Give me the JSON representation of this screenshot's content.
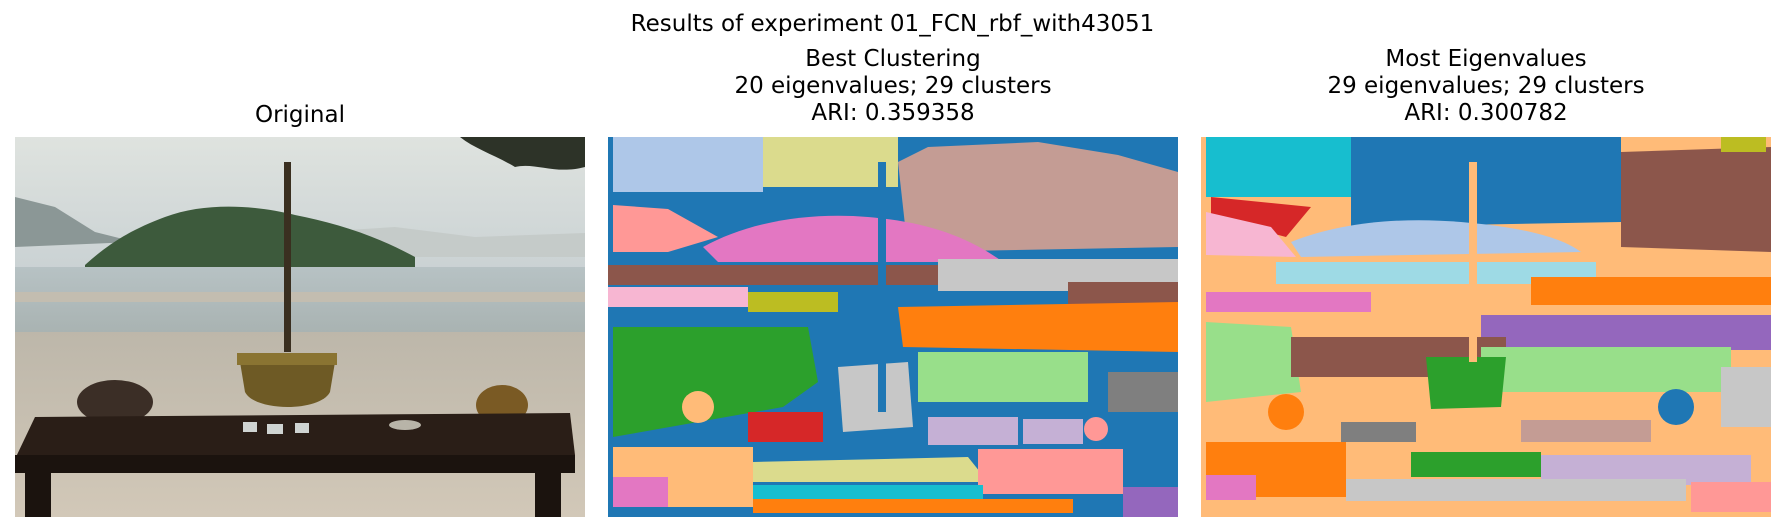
{
  "figure": {
    "title": "Results of experiment 01_FCN_rbf_with43051"
  },
  "panels": [
    {
      "name": "original",
      "title_lines": [
        "Original"
      ],
      "kind": "photo"
    },
    {
      "name": "best-clustering",
      "title_lines": [
        "Best Clustering",
        "20 eigenvalues; 29 clusters",
        "ARI: 0.359358"
      ],
      "kind": "segmentation",
      "eigenvalues": 20,
      "clusters": 29,
      "ari": 0.359358
    },
    {
      "name": "most-eigenvalues",
      "title_lines": [
        "Most Eigenvalues",
        "29 eigenvalues; 29 clusters",
        "ARI: 0.300782"
      ],
      "kind": "segmentation",
      "eigenvalues": 29,
      "clusters": 29,
      "ari": 0.300782
    }
  ],
  "palette": {
    "blue": "#1f77b4",
    "lightblue": "#aec7e8",
    "orange": "#ff7f0e",
    "lightorange": "#ffbb78",
    "green": "#2ca02c",
    "lightgreen": "#98df8a",
    "red": "#d62728",
    "pink": "#ff9896",
    "purple": "#9467bd",
    "lavender": "#c5b0d5",
    "brown": "#8c564b",
    "rosybrown": "#c49c94",
    "magenta": "#e377c2",
    "lightpink": "#f7b6d2",
    "gray": "#7f7f7f",
    "silver": "#c7c7c7",
    "olive": "#bcbd22",
    "khaki": "#dbdb8d",
    "cyan": "#17becf",
    "lightcyan": "#9edae5"
  }
}
